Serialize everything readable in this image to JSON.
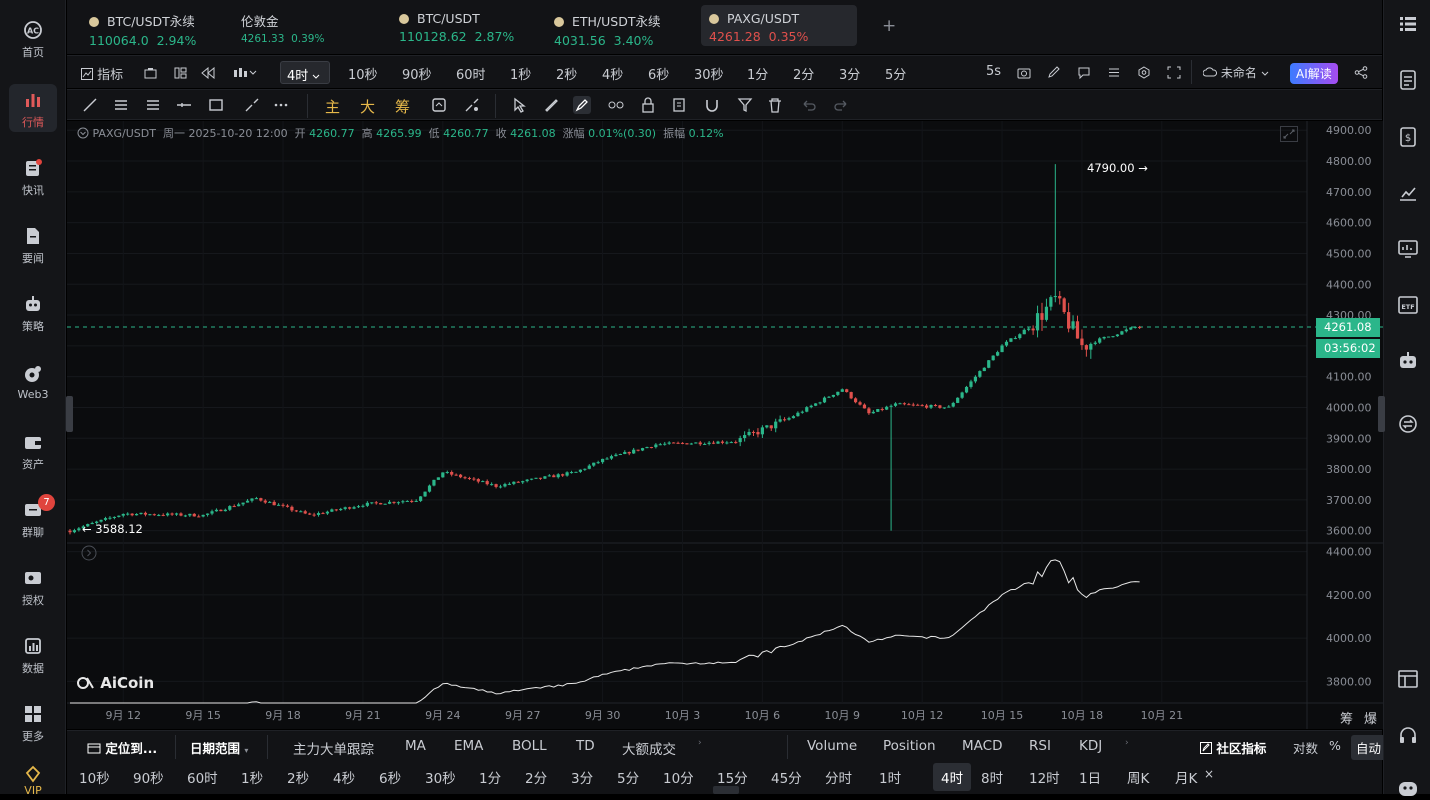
{
  "sidebar": {
    "items": [
      {
        "label": "首页",
        "icon": "aicoin-logo-icon"
      },
      {
        "label": "行情",
        "icon": "bar-chart-icon",
        "active": true
      },
      {
        "label": "快讯",
        "icon": "news-icon"
      },
      {
        "label": "要闻",
        "icon": "document-icon"
      },
      {
        "label": "策略",
        "icon": "robot-icon"
      },
      {
        "label": "Web3",
        "icon": "web3-icon"
      },
      {
        "label": "资产",
        "icon": "wallet-icon"
      },
      {
        "label": "群聊",
        "icon": "chat-icon",
        "badge": "7"
      },
      {
        "label": "授权",
        "icon": "key-icon"
      },
      {
        "label": "数据",
        "icon": "data-icon"
      },
      {
        "label": "更多",
        "icon": "grid-icon"
      },
      {
        "label": "VIP",
        "icon": "vip-icon"
      }
    ]
  },
  "tabs": [
    {
      "name": "BTC/USDT永续",
      "price": "110064.0",
      "change": "2.94%",
      "dir": "up"
    },
    {
      "name": "伦敦金",
      "price": "4261.33",
      "change": "0.39%",
      "dir": "up"
    },
    {
      "name": "BTC/USDT",
      "price": "110128.62",
      "change": "2.87%",
      "dir": "up"
    },
    {
      "name": "ETH/USDT永续",
      "price": "4031.56",
      "change": "3.40%",
      "dir": "up"
    },
    {
      "name": "PAXG/USDT",
      "price": "4261.28",
      "change": "0.35%",
      "dir": "dn",
      "active": true
    }
  ],
  "add_tab": "+",
  "toolbar": {
    "indicator": "指标",
    "interval": "4时",
    "intervals": [
      "10秒",
      "90秒",
      "60时",
      "1秒",
      "2秒",
      "4秒",
      "6秒",
      "30秒",
      "1分",
      "2分",
      "3分",
      "5分"
    ],
    "refresh": "5s",
    "layout_name": "未命名",
    "ai_label": "AI解读"
  },
  "draw_tools": {
    "main": "主",
    "large": "大",
    "chips": "筹"
  },
  "ohlc": {
    "symbol": "PAXG/USDT",
    "datetime": "周一 2025-10-20 12:00",
    "open_label": "开",
    "open": "4260.77",
    "high_label": "高",
    "high": "4265.99",
    "low_label": "低",
    "low": "4260.77",
    "close_label": "收",
    "close": "4261.08",
    "chg_label": "涨幅",
    "chg": "0.01%(0.30)",
    "amp_label": "振幅",
    "amp": "0.12%"
  },
  "price_axis": [
    "4900.00",
    "4800.00",
    "4700.00",
    "4600.00",
    "4500.00",
    "4400.00",
    "4300.00",
    "4200.00",
    "4100.00",
    "4000.00",
    "3900.00",
    "3800.00",
    "3700.00",
    "3600.00"
  ],
  "sub_axis": [
    "4400.00",
    "4200.00",
    "4000.00",
    "3800.00"
  ],
  "current_price": "4261.08",
  "countdown": "03:56:02",
  "max_marker": "4790.00 →",
  "min_marker": "← 3588.12",
  "date_axis": [
    "9月 12",
    "9月 15",
    "9月 18",
    "9月 21",
    "9月 24",
    "9月 27",
    "9月 30",
    "10月 3",
    "10月 6",
    "10月 9",
    "10月 12",
    "10月 15",
    "10月 18",
    "10月 21"
  ],
  "corner_labels": {
    "chips": "筹",
    "burst": "爆"
  },
  "watermark": "AiCoin",
  "bottom1": {
    "locate": "定位到...",
    "date_range": "日期范围",
    "indicators": [
      "主力大单跟踪",
      "MA",
      "EMA",
      "BOLL",
      "TD",
      "大额成交"
    ],
    "sub_indicators": [
      "Volume",
      "Position",
      "MACD",
      "RSI",
      "KDJ"
    ],
    "community": "社区指标",
    "log": "对数",
    "pct": "%",
    "auto": "自动"
  },
  "bottom2": {
    "intervals": [
      "10秒",
      "90秒",
      "60时",
      "1秒",
      "2秒",
      "4秒",
      "6秒",
      "30秒",
      "1分",
      "2分",
      "3分",
      "5分",
      "10分",
      "15分",
      "45分",
      "分时",
      "1时",
      "4时",
      "8时",
      "12时",
      "1日",
      "周K",
      "月K"
    ],
    "selected": "4时",
    "close": "×"
  },
  "colors": {
    "up": "#2bb68a",
    "down": "#e0504c",
    "accent": "#2bb68a",
    "bg": "#0b0c0e"
  },
  "chart_data": {
    "type": "candlestick",
    "timeframe": "4时",
    "x_range": [
      "9月 10",
      "10月 20"
    ],
    "ylim": [
      3560,
      4930
    ],
    "key_points": [
      {
        "date": "9月 10",
        "price": 3600
      },
      {
        "date": "9月 12",
        "price": 3655
      },
      {
        "date": "9月 15",
        "price": 3650
      },
      {
        "date": "9月 17",
        "price": 3705
      },
      {
        "date": "9月 19",
        "price": 3650
      },
      {
        "date": "9月 21",
        "price": 3685
      },
      {
        "date": "9月 23",
        "price": 3700
      },
      {
        "date": "9月 24",
        "price": 3790
      },
      {
        "date": "9月 26",
        "price": 3745
      },
      {
        "date": "9月 29",
        "price": 3790
      },
      {
        "date": "9月 30",
        "price": 3830
      },
      {
        "date": "10月 2",
        "price": 3880
      },
      {
        "date": "10月 5",
        "price": 3890
      },
      {
        "date": "10月 7",
        "price": 3965
      },
      {
        "date": "10月 9",
        "price": 4060
      },
      {
        "date": "10月 10",
        "price": 3980
      },
      {
        "date": "10月 11",
        "price": 4010
      },
      {
        "date": "10月 13",
        "price": 4000
      },
      {
        "date": "10月 15",
        "price": 4200
      },
      {
        "date": "10月 16",
        "price": 4260
      },
      {
        "date": "10月 17",
        "price": 4350
      },
      {
        "date": "10月 18",
        "price": 4200
      },
      {
        "date": "10月 20",
        "price": 4261
      }
    ],
    "high": 4790.0,
    "low": 3588.12,
    "sub_series": "close line"
  }
}
